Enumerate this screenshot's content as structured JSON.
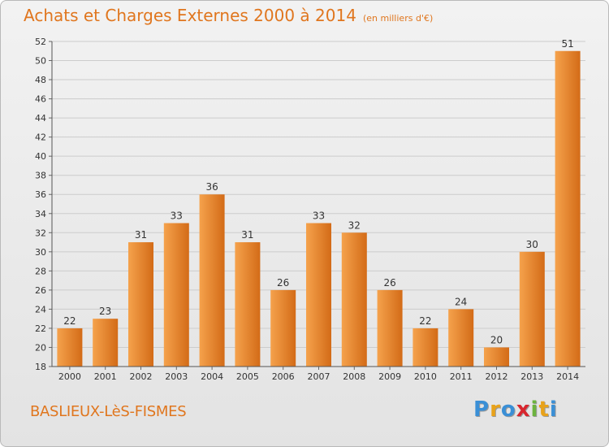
{
  "header": {
    "title": "Achats et Charges Externes 2000 à 2014",
    "unit": "(en milliers d'€)"
  },
  "footer": {
    "commune": "BASLIEUX-LèS-FISMES",
    "logo": [
      "P",
      "r",
      "o",
      "x",
      "i",
      "t",
      "i"
    ],
    "logo_colors": [
      "#3a8fd6",
      "#e8a21a",
      "#3a8fd6",
      "#d8262e",
      "#6cb33f",
      "#e8a21a",
      "#3a8fd6"
    ]
  },
  "colors": {
    "bar_light": "#f5a24c",
    "bar_dark": "#d36b17",
    "grid": "#cccccc",
    "title": "#e0761e"
  },
  "chart_data": {
    "type": "bar",
    "title": "Achats et Charges Externes 2000 à 2014",
    "categories": [
      "2000",
      "2001",
      "2002",
      "2003",
      "2004",
      "2005",
      "2006",
      "2007",
      "2008",
      "2009",
      "2010",
      "2011",
      "2012",
      "2013",
      "2014"
    ],
    "values": [
      22,
      23,
      31,
      33,
      36,
      31,
      26,
      33,
      32,
      26,
      22,
      24,
      20,
      30,
      51
    ],
    "ylim": [
      18,
      52
    ],
    "yticks": [
      18,
      20,
      22,
      24,
      26,
      28,
      30,
      32,
      34,
      36,
      38,
      40,
      42,
      44,
      46,
      48,
      50,
      52
    ],
    "grid": true,
    "xlabel": "",
    "ylabel": ""
  }
}
